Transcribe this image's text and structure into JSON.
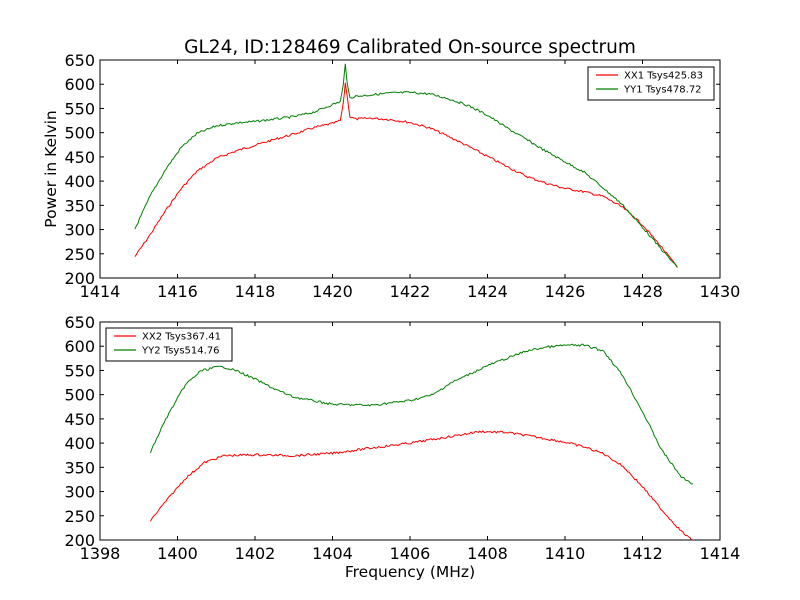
{
  "figure": {
    "title": "GL24, ID:128469 Calibrated On-source spectrum",
    "ylabel": "Power in Kelvin",
    "xlabel": "Frequency (MHz)"
  },
  "chart_data": [
    {
      "type": "line",
      "title": "GL24, ID:128469 Calibrated On-source spectrum",
      "xlabel": "",
      "ylabel": "Power in Kelvin",
      "xlim": [
        1414,
        1430
      ],
      "ylim": [
        200,
        650
      ],
      "xticks": [
        1414,
        1416,
        1418,
        1420,
        1422,
        1424,
        1426,
        1428,
        1430
      ],
      "yticks": [
        200,
        250,
        300,
        350,
        400,
        450,
        500,
        550,
        600,
        650
      ],
      "grid": false,
      "legend_position": "top-right",
      "series": [
        {
          "name": "XX1 Tsys425.83",
          "color": "#ff0000",
          "x": [
            1414.9,
            1415.3,
            1415.7,
            1416.1,
            1416.5,
            1417.0,
            1417.5,
            1418.0,
            1418.5,
            1419.0,
            1419.5,
            1420.0,
            1420.2,
            1420.28,
            1420.33,
            1420.38,
            1420.45,
            1420.6,
            1421.0,
            1421.5,
            1422.0,
            1422.5,
            1423.0,
            1423.5,
            1424.0,
            1424.5,
            1425.0,
            1425.5,
            1426.0,
            1426.5,
            1427.0,
            1427.5,
            1428.0,
            1428.5,
            1428.9
          ],
          "y": [
            244,
            290,
            340,
            385,
            420,
            447,
            462,
            474,
            486,
            497,
            510,
            519,
            525,
            560,
            603,
            575,
            533,
            528,
            530,
            527,
            521,
            510,
            492,
            472,
            451,
            430,
            410,
            396,
            385,
            378,
            368,
            345,
            310,
            263,
            222
          ]
        },
        {
          "name": "YY1 Tsys478.72",
          "color": "#008000",
          "x": [
            1414.9,
            1415.3,
            1415.7,
            1416.1,
            1416.5,
            1417.0,
            1417.5,
            1418.0,
            1418.5,
            1419.0,
            1419.5,
            1420.0,
            1420.2,
            1420.28,
            1420.33,
            1420.38,
            1420.45,
            1420.6,
            1421.0,
            1421.5,
            1422.0,
            1422.5,
            1423.0,
            1423.5,
            1424.0,
            1424.5,
            1425.0,
            1425.5,
            1426.0,
            1426.5,
            1427.0,
            1427.5,
            1428.0,
            1428.5,
            1428.9
          ],
          "y": [
            301,
            370,
            425,
            470,
            498,
            514,
            520,
            523,
            528,
            533,
            542,
            558,
            564,
            598,
            644,
            600,
            572,
            575,
            578,
            582,
            583,
            580,
            570,
            556,
            536,
            510,
            486,
            462,
            440,
            418,
            385,
            350,
            305,
            258,
            222
          ]
        }
      ]
    },
    {
      "type": "line",
      "title": "",
      "xlabel": "Frequency (MHz)",
      "ylabel": "",
      "xlim": [
        1398,
        1414
      ],
      "ylim": [
        200,
        650
      ],
      "xticks": [
        1398,
        1400,
        1402,
        1404,
        1406,
        1408,
        1410,
        1412,
        1414
      ],
      "yticks": [
        200,
        250,
        300,
        350,
        400,
        450,
        500,
        550,
        600,
        650
      ],
      "grid": false,
      "legend_position": "top-left",
      "series": [
        {
          "name": "XX2 Tsys367.41",
          "color": "#ff0000",
          "x": [
            1399.3,
            1399.7,
            1400.2,
            1400.7,
            1401.2,
            1402.0,
            1403.0,
            1404.0,
            1405.0,
            1406.0,
            1407.0,
            1407.8,
            1408.5,
            1409.0,
            1410.0,
            1410.5,
            1411.0,
            1411.5,
            1412.0,
            1412.5,
            1413.0,
            1413.3
          ],
          "y": [
            240,
            280,
            327,
            360,
            374,
            376,
            374,
            379,
            390,
            400,
            413,
            424,
            422,
            416,
            402,
            392,
            378,
            352,
            310,
            262,
            218,
            198
          ]
        },
        {
          "name": "YY2 Tsys514.76",
          "color": "#008000",
          "x": [
            1399.3,
            1399.7,
            1400.2,
            1400.6,
            1401.0,
            1401.2,
            1401.5,
            1402.0,
            1402.5,
            1403.0,
            1404.0,
            1405.0,
            1406.0,
            1406.6,
            1407.0,
            1408.0,
            1409.0,
            1409.5,
            1410.0,
            1410.5,
            1411.0,
            1411.5,
            1412.0,
            1412.5,
            1413.0,
            1413.3
          ],
          "y": [
            381,
            450,
            520,
            549,
            557,
            557,
            550,
            532,
            512,
            495,
            480,
            478,
            488,
            500,
            522,
            560,
            590,
            598,
            602,
            602,
            590,
            538,
            465,
            385,
            330,
            316
          ]
        }
      ]
    }
  ]
}
